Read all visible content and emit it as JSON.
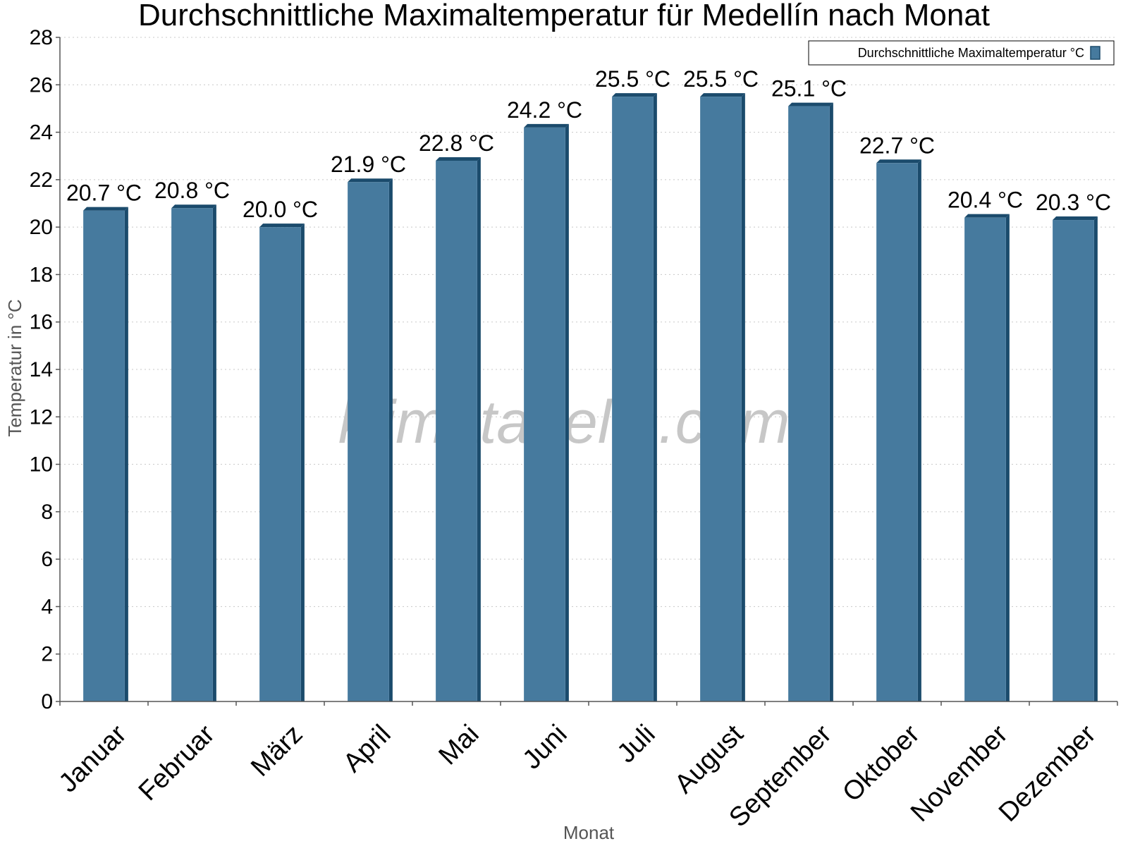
{
  "chart_data": {
    "type": "bar",
    "title": "Durchschnittliche Maximaltemperatur für Medellín nach Monat",
    "xlabel": "Monat",
    "ylabel": "Temperatur in °C",
    "categories": [
      "Januar",
      "Februar",
      "März",
      "April",
      "Mai",
      "Juni",
      "Juli",
      "August",
      "September",
      "Oktober",
      "November",
      "Dezember"
    ],
    "series": [
      {
        "name": "Durchschnittliche Maximaltemperatur °C",
        "values": [
          20.7,
          20.8,
          20.0,
          21.9,
          22.8,
          24.2,
          25.5,
          25.5,
          25.1,
          22.7,
          20.4,
          20.3
        ],
        "labels": [
          "20.7 °C",
          "20.8 °C",
          "20.0 °C",
          "21.9 °C",
          "22.8 °C",
          "24.2 °C",
          "25.5 °C",
          "25.5 °C",
          "25.1 °C",
          "22.7 °C",
          "20.4 °C",
          "20.3 °C"
        ]
      }
    ],
    "ylim": [
      0,
      28
    ],
    "yticks": [
      0,
      2,
      4,
      6,
      8,
      10,
      12,
      14,
      16,
      18,
      20,
      22,
      24,
      26,
      28
    ],
    "grid": true,
    "legend_position": "top-right",
    "watermark": "klimatabelle.com",
    "colors": {
      "bar_face": "#467a9e",
      "bar_side": "#1b4b6c",
      "bar_top": "#1b4b6c",
      "grid": "#c8c8c8"
    }
  }
}
